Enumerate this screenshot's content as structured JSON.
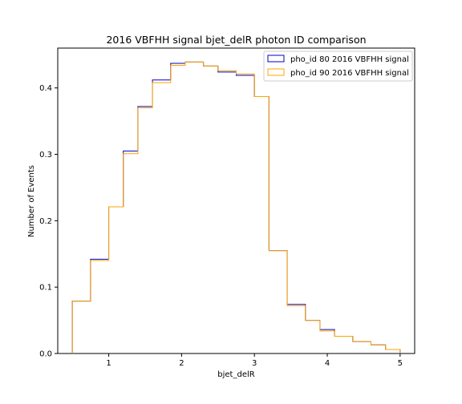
{
  "chart_data": {
    "type": "step",
    "title": "2016 VBFHH signal bjet_delR photon ID comparison",
    "xlabel": "bjet_delR",
    "ylabel": "Number of Events",
    "xlim": [
      0.3,
      5.2
    ],
    "ylim": [
      0,
      0.46
    ],
    "xticks": [
      1,
      2,
      3,
      4,
      5
    ],
    "xtick_labels": [
      "1",
      "2",
      "3",
      "4",
      "5"
    ],
    "yticks": [
      0.0,
      0.1,
      0.2,
      0.3,
      0.4
    ],
    "ytick_labels": [
      "0.0",
      "0.1",
      "0.2",
      "0.3",
      "0.4"
    ],
    "legend_position": "top-right",
    "bin_edges": [
      0.5,
      0.75,
      1.0,
      1.2,
      1.4,
      1.6,
      1.85,
      2.05,
      2.3,
      2.5,
      2.75,
      3.0,
      3.2,
      3.45,
      3.7,
      3.9,
      4.1,
      4.35,
      4.6,
      4.8,
      5.0
    ],
    "series": [
      {
        "name": "pho_id 80 2016 VBFHH signal",
        "color": "#0000cc",
        "values": [
          0.079,
          0.142,
          0.221,
          0.305,
          0.372,
          0.412,
          0.437,
          0.439,
          0.433,
          0.424,
          0.419,
          0.387,
          0.155,
          0.074,
          0.05,
          0.036,
          0.026,
          0.018,
          0.013,
          0.006
        ]
      },
      {
        "name": "pho_id 90 2016 VBFHH signal",
        "color": "#ffa500",
        "values": [
          0.079,
          0.14,
          0.221,
          0.301,
          0.37,
          0.408,
          0.434,
          0.439,
          0.433,
          0.426,
          0.421,
          0.387,
          0.155,
          0.072,
          0.05,
          0.034,
          0.026,
          0.018,
          0.013,
          0.006
        ]
      }
    ]
  }
}
